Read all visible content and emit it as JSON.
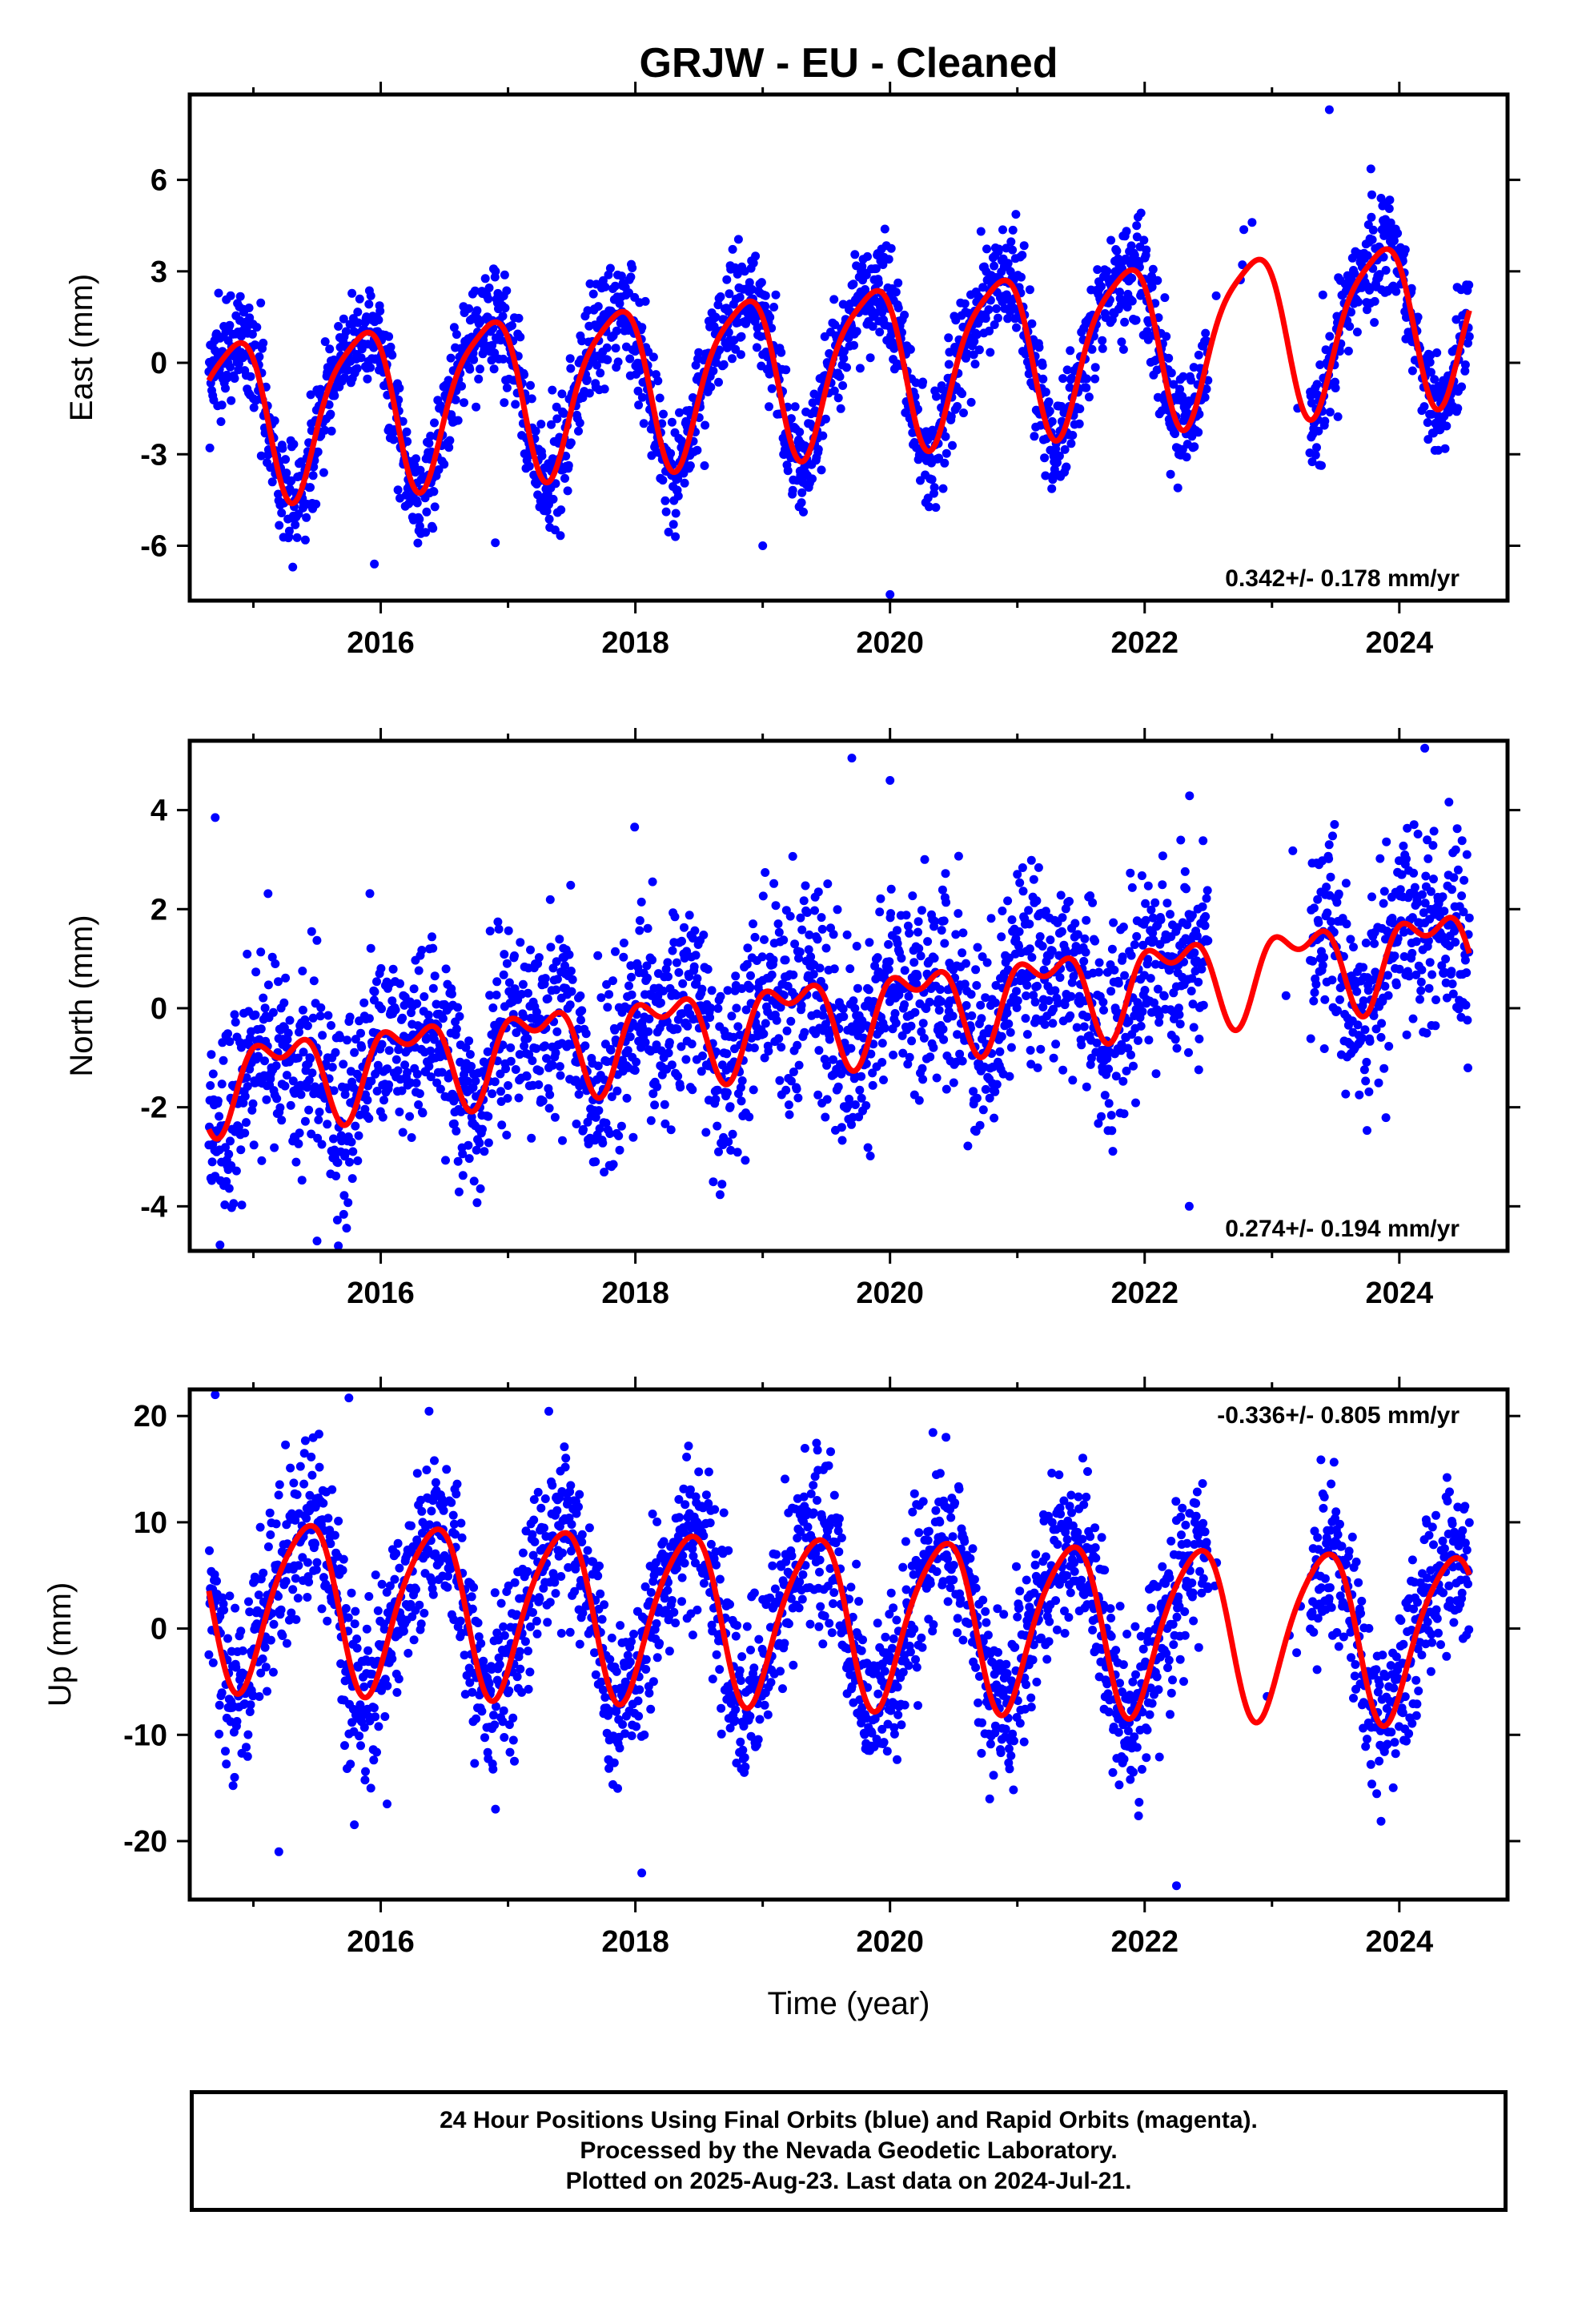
{
  "title": "GRJW  - EU - Cleaned",
  "xlabel": "Time (year)",
  "colors": {
    "points": "#0000ff",
    "fit": "#ff0000",
    "axes": "#000000"
  },
  "caption": {
    "line1": "24 Hour Positions Using Final Orbits (blue) and Rapid Orbits (magenta).",
    "line2": "Processed by the Nevada Geodetic Laboratory.",
    "line3": "Plotted on 2025-Aug-23. Last data on 2024-Jul-21."
  },
  "chart_data": [
    {
      "type": "scatter",
      "component": "east",
      "ylabel": "East (mm)",
      "xlim": [
        2014.5,
        2024.85
      ],
      "ylim": [
        -7.8,
        8.8
      ],
      "xticks": [
        2016,
        2018,
        2020,
        2022,
        2024
      ],
      "yticks": [
        -6,
        -3,
        0,
        3,
        6
      ],
      "rate_label": "0.342+/- 0.178 mm/yr",
      "rate_position": "bottom-right",
      "grid": false,
      "data_span": [
        2014.65,
        2024.55
      ],
      "gaps": [
        [
          2022.5,
          2023.3
        ]
      ],
      "fit": {
        "offset": -0.05,
        "rate": 0.342,
        "annual_amp": 2.6,
        "annual_phase": 2.65,
        "semiannual_amp": 0.55,
        "semiannual_phase": 1.2,
        "ref_year": 2019.6
      },
      "scatter_sd": 0.9,
      "points_count": 2600,
      "outliers": [
        [
          2023.45,
          8.3
        ],
        [
          2020.0,
          -7.6
        ],
        [
          2015.95,
          -6.6
        ],
        [
          2019.0,
          -6.0
        ],
        [
          2016.9,
          -5.9
        ]
      ],
      "series": [
        {
          "name": "",
          "kind": "points",
          "color": "#0000ff"
        },
        {
          "name": "",
          "kind": "fit",
          "color": "#ff0000"
        }
      ]
    },
    {
      "type": "scatter",
      "component": "north",
      "ylabel": "North (mm)",
      "xlim": [
        2014.5,
        2024.85
      ],
      "ylim": [
        -4.9,
        5.4
      ],
      "xticks": [
        2016,
        2018,
        2020,
        2022,
        2024
      ],
      "yticks": [
        -4,
        -2,
        0,
        2,
        4
      ],
      "rate_label": "0.274+/- 0.194 mm/yr",
      "rate_position": "bottom-right",
      "grid": false,
      "data_span": [
        2014.65,
        2024.55
      ],
      "gaps": [
        [
          2022.5,
          2023.3
        ]
      ],
      "fit": {
        "offset": -0.1,
        "rate": 0.274,
        "annual_amp": 0.75,
        "annual_phase": 0.2,
        "semiannual_amp": 0.45,
        "semiannual_phase": 2.0,
        "ref_year": 2019.6
      },
      "scatter_sd": 1.0,
      "points_count": 2600,
      "outliers": [
        [
          2019.7,
          5.05
        ],
        [
          2024.2,
          5.25
        ],
        [
          2020.0,
          4.6
        ],
        [
          2014.7,
          3.85
        ],
        [
          2022.35,
          -4.0
        ],
        [
          2015.5,
          -4.7
        ]
      ],
      "series": [
        {
          "name": "",
          "kind": "points",
          "color": "#0000ff"
        },
        {
          "name": "",
          "kind": "fit",
          "color": "#ff0000"
        }
      ]
    },
    {
      "type": "scatter",
      "component": "up",
      "ylabel": "Up (mm)",
      "xlim": [
        2014.5,
        2024.85
      ],
      "ylim": [
        -25.5,
        22.5
      ],
      "xticks": [
        2016,
        2018,
        2020,
        2022,
        2024
      ],
      "yticks": [
        -20,
        -10,
        0,
        10,
        20
      ],
      "rate_label": "-0.336+/- 0.805 mm/yr",
      "rate_position": "top-right",
      "grid": false,
      "data_span": [
        2014.65,
        2024.55
      ],
      "gaps": [
        [
          2022.5,
          2023.3
        ]
      ],
      "fit": {
        "offset": 1.0,
        "rate": -0.336,
        "annual_amp": 7.8,
        "annual_phase": -0.95,
        "semiannual_amp": 1.2,
        "semiannual_phase": 0.5,
        "ref_year": 2019.6
      },
      "scatter_sd": 4.0,
      "points_count": 2600,
      "outliers": [
        [
          2014.7,
          22.0
        ],
        [
          2015.75,
          21.7
        ],
        [
          2022.25,
          -24.2
        ],
        [
          2018.05,
          -23.0
        ],
        [
          2016.05,
          -16.5
        ],
        [
          2015.2,
          -21.0
        ]
      ],
      "series": [
        {
          "name": "",
          "kind": "points",
          "color": "#0000ff"
        },
        {
          "name": "",
          "kind": "fit",
          "color": "#ff0000"
        }
      ]
    }
  ]
}
